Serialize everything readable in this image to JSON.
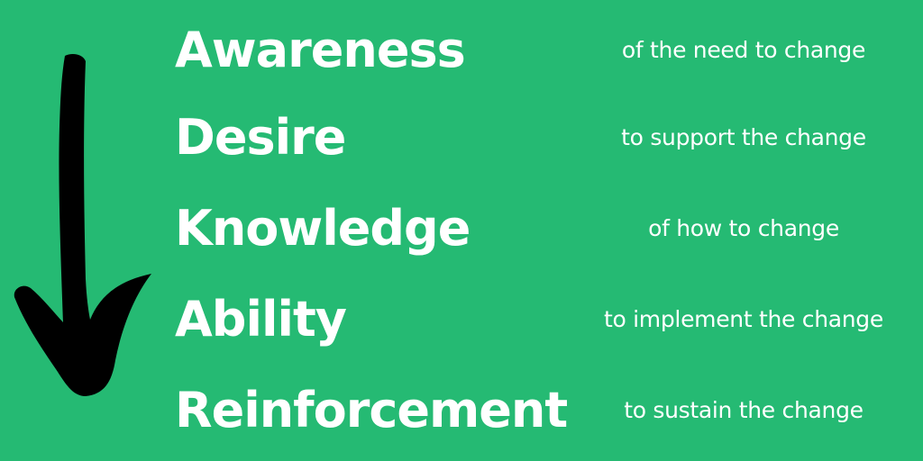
{
  "colors": {
    "background": "#25ba73",
    "text": "#ffffff",
    "arrow": "#000000"
  },
  "icons": {
    "arrow": "down-arrow-icon"
  },
  "steps": [
    {
      "term": "Awareness",
      "description": "of the need to change"
    },
    {
      "term": "Desire",
      "description": "to support the change"
    },
    {
      "term": "Knowledge",
      "description": "of how to change"
    },
    {
      "term": "Ability",
      "description": "to implement the change"
    },
    {
      "term": "Reinforcement",
      "description": "to sustain the change"
    }
  ]
}
